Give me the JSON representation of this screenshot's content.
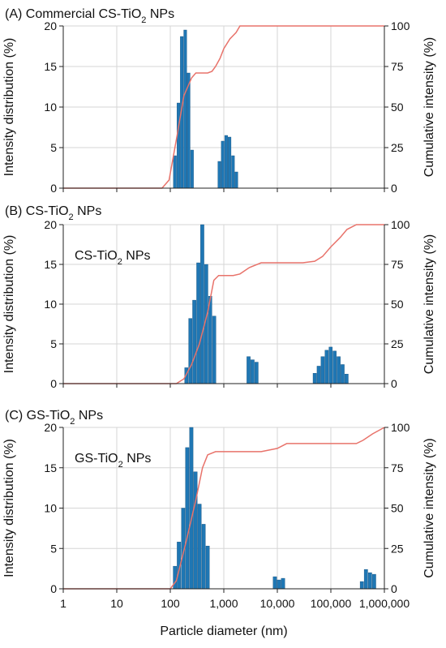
{
  "chart_data": [
    {
      "type": "bar",
      "title": "(A) Commercial CS-TiO₂ NPs",
      "inset_label": "",
      "ylabel": "Intensity distribution (%)",
      "y2label": "Cumulative intensity (%)",
      "xscale": "log",
      "xlim": [
        1,
        1000000
      ],
      "ylim": [
        0,
        20
      ],
      "y2lim": [
        0,
        100
      ],
      "yticks": [
        "0",
        "5",
        "10",
        "15",
        "20"
      ],
      "y2ticks": [
        "0",
        "25",
        "50",
        "75",
        "100"
      ],
      "grid": true,
      "bar_color": "#1f77b4",
      "line_color": "#e8736b",
      "bars": {
        "x": [
          122,
          142,
          164,
          190,
          220,
          255,
          295,
          825,
          955,
          1106,
          1281,
          1484,
          1718,
          1990
        ],
        "values": [
          4.0,
          10.5,
          18.7,
          19.5,
          14.2,
          4.7,
          0,
          3.3,
          5.8,
          6.5,
          6.3,
          4.0,
          2.0,
          0
        ]
      },
      "cumulative": {
        "x": [
          1,
          48,
          70,
          95,
          130,
          180,
          250,
          300,
          500,
          600,
          700,
          850,
          1000,
          1300,
          1700,
          2000,
          3000,
          1000000
        ],
        "values": [
          0,
          0,
          0,
          5,
          30,
          57,
          68,
          71,
          71,
          72,
          75,
          80,
          86,
          92,
          96,
          100,
          100,
          100
        ]
      }
    },
    {
      "type": "bar",
      "title": "(B) CS-TiO₂ NPs",
      "inset_label": "CS-TiO₂ NPs",
      "ylabel": "Intensity distribution (%)",
      "y2label": "Cumulative intensity (%)",
      "xscale": "log",
      "xlim": [
        1,
        1000000
      ],
      "ylim": [
        0,
        20
      ],
      "y2lim": [
        0,
        100
      ],
      "yticks": [
        "0",
        "5",
        "10",
        "15",
        "20"
      ],
      "y2ticks": [
        "0",
        "25",
        "50",
        "75",
        "100"
      ],
      "grid": true,
      "bar_color": "#1f77b4",
      "line_color": "#e8736b",
      "bars": {
        "x": [
          200,
          237,
          281,
          334,
          396,
          470,
          557,
          661,
          2900,
          3442,
          4085,
          50000,
          59330,
          70401,
          83538,
          99126,
          117623,
          139572,
          165618,
          196524
        ],
        "values": [
          2.0,
          8.2,
          10.5,
          15.2,
          20.0,
          15.0,
          11.0,
          8.5,
          3.4,
          3.0,
          2.7,
          1.3,
          2.2,
          3.4,
          4.2,
          4.6,
          4.1,
          3.4,
          2.4,
          1.2
        ]
      },
      "cumulative": {
        "x": [
          1,
          130,
          180,
          250,
          350,
          500,
          650,
          800,
          1000,
          1500,
          2000,
          3000,
          5000,
          10000,
          30000,
          50000,
          70000,
          100000,
          150000,
          200000,
          300000,
          1000000
        ],
        "values": [
          0,
          0,
          3,
          12,
          25,
          45,
          65,
          68,
          68,
          68,
          69,
          73,
          76,
          76,
          76,
          77,
          80,
          86,
          92,
          97,
          100,
          100
        ]
      }
    },
    {
      "type": "bar",
      "title": "(C) GS-TiO₂ NPs",
      "inset_label": "GS-TiO₂ NPs",
      "ylabel": "Intensity distribution (%)",
      "y2label": "Cumulative intensity (%)",
      "xscale": "log",
      "xlim": [
        1,
        1000000
      ],
      "ylim": [
        0,
        20
      ],
      "y2lim": [
        0,
        100
      ],
      "yticks": [
        "0",
        "5",
        "10",
        "15",
        "20"
      ],
      "y2ticks": [
        "0",
        "25",
        "50",
        "75",
        "100"
      ],
      "grid": true,
      "bar_color": "#1f77b4",
      "line_color": "#e8736b",
      "bars": {
        "x": [
          122,
          145,
          174,
          207,
          247,
          295,
          352,
          420,
          500,
          9000,
          10724,
          12779,
          380000,
          452822,
          539600,
          643009
        ],
        "values": [
          2.8,
          5.8,
          10.0,
          17.5,
          20.0,
          14.5,
          10.5,
          8.0,
          5.3,
          1.5,
          1.1,
          1.3,
          0.9,
          2.4,
          2.0,
          1.8
        ]
      },
      "cumulative": {
        "x": [
          1,
          80,
          100,
          130,
          200,
          300,
          400,
          500,
          700,
          1000,
          2000,
          5000,
          10000,
          15000,
          100000,
          300000,
          400000,
          600000,
          1000000
        ],
        "values": [
          0,
          0,
          0,
          5,
          30,
          55,
          75,
          83,
          85,
          85,
          85,
          85,
          87,
          90,
          90,
          90,
          92,
          96,
          100
        ]
      }
    }
  ],
  "xlabel": "Particle  diameter (nm)",
  "xticks": [
    "1",
    "10",
    "100",
    "1,000",
    "10,000",
    "100,000",
    "1,000,000"
  ]
}
